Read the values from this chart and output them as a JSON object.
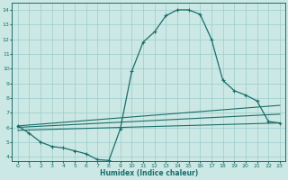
{
  "xlabel": "Humidex (Indice chaleur)",
  "bg_color": "#cce8e4",
  "grid_color": "#99cccc",
  "line_color": "#1a6e6a",
  "xlim": [
    -0.5,
    23.5
  ],
  "ylim": [
    3.7,
    14.5
  ],
  "yticks": [
    4,
    5,
    6,
    7,
    8,
    9,
    10,
    11,
    12,
    13,
    14
  ],
  "xticks": [
    0,
    1,
    2,
    3,
    4,
    5,
    6,
    7,
    8,
    9,
    10,
    11,
    12,
    13,
    14,
    15,
    16,
    17,
    18,
    19,
    20,
    21,
    22,
    23
  ],
  "series1_x": [
    0,
    1,
    2,
    3,
    4,
    5,
    6,
    7,
    8,
    9,
    10,
    11,
    12,
    13,
    14,
    15,
    16,
    17,
    18,
    19,
    20,
    21,
    22,
    23
  ],
  "series1_y": [
    6.1,
    5.6,
    5.0,
    4.7,
    4.6,
    4.4,
    4.2,
    3.8,
    3.75,
    5.9,
    9.8,
    11.8,
    12.5,
    13.6,
    14.0,
    14.0,
    13.7,
    12.0,
    9.2,
    8.5,
    8.2,
    7.8,
    6.4,
    6.3
  ],
  "line2_x": [
    0,
    23
  ],
  "line2_y": [
    6.1,
    7.5
  ],
  "line3_x": [
    0,
    23
  ],
  "line3_y": [
    6.0,
    6.9
  ],
  "line4_x": [
    0,
    23
  ],
  "line4_y": [
    5.8,
    6.3
  ]
}
